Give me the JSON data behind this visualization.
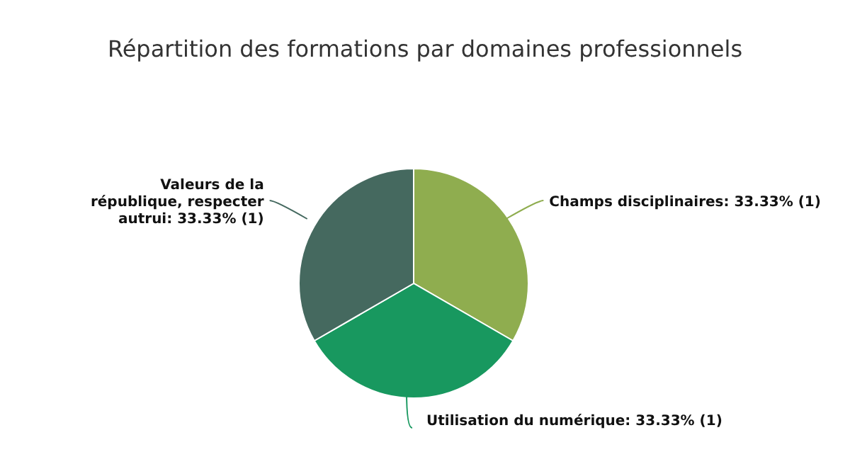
{
  "chart_data": {
    "type": "pie",
    "title": "Répartition des formations par domaines professionnels",
    "categories": [
      "Champs disciplinaires",
      "Utilisation du numérique",
      "Valeurs de la république, respecter autrui"
    ],
    "values": [
      1,
      1,
      1
    ],
    "value_labels": [
      "33.33% (1)",
      "33.33% (1)",
      "33.33% (1)"
    ],
    "colors": [
      "#8fad4f",
      "#18985f",
      "#45695f"
    ],
    "legend": false
  }
}
